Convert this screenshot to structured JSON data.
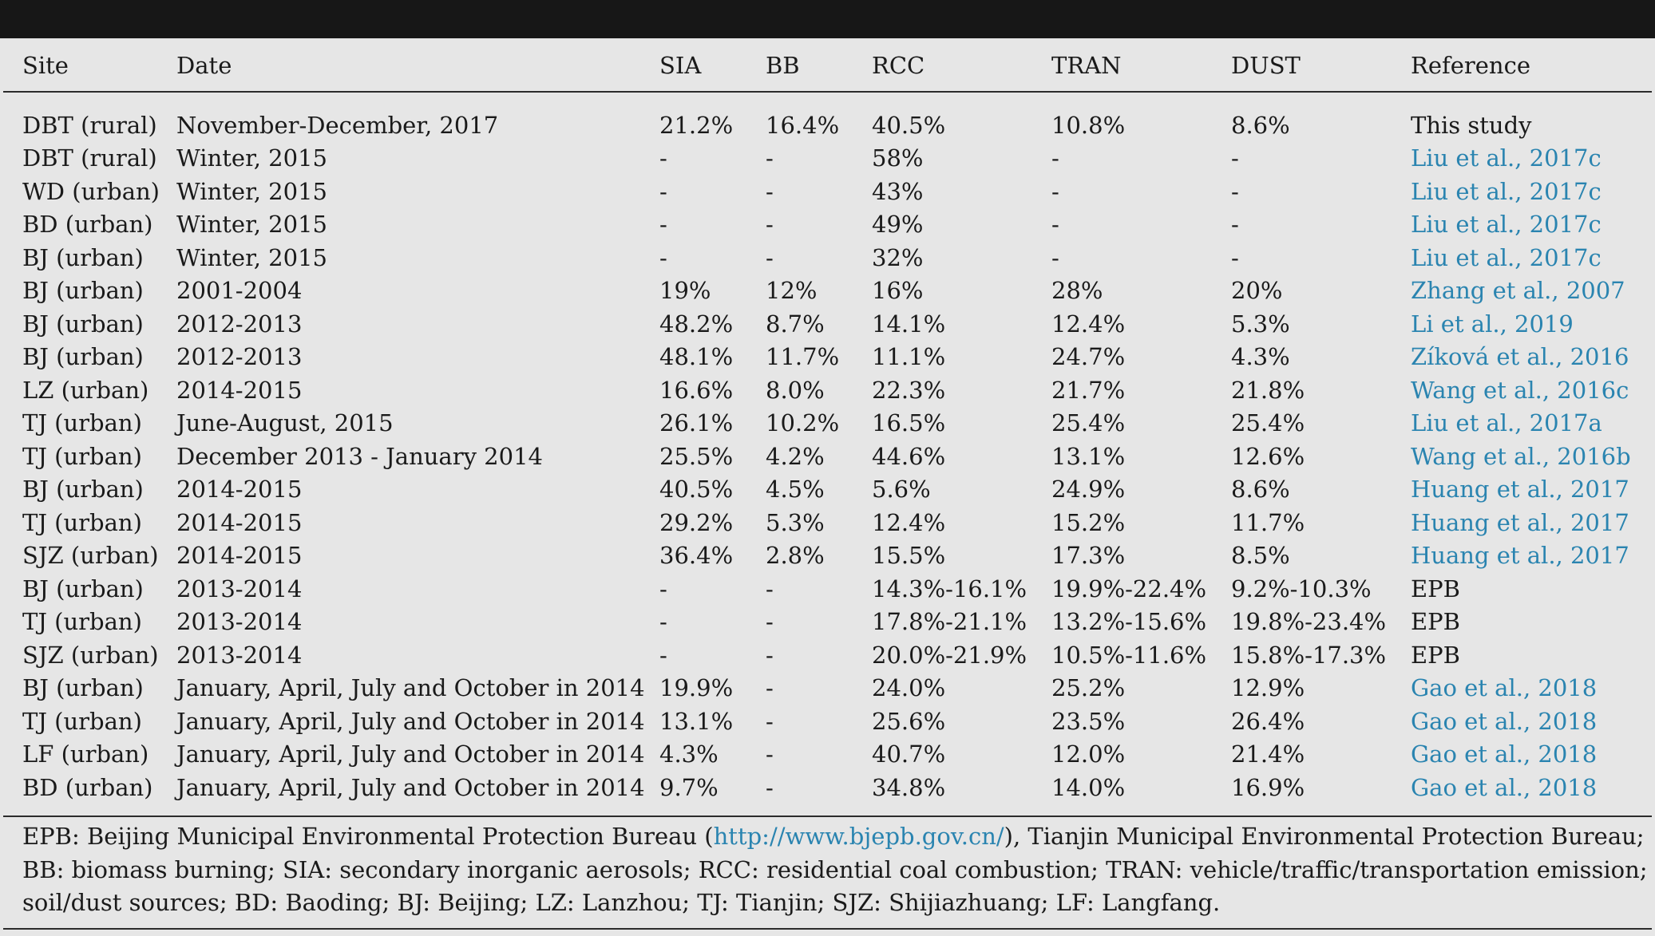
{
  "table": {
    "headers": [
      "Site",
      "Date",
      "SIA",
      "BB",
      "RCC",
      "TRAN",
      "DUST",
      "Reference"
    ],
    "rows": [
      {
        "site": "DBT (rural)",
        "date": "November-December, 2017",
        "sia": "21.2%",
        "bb": "16.4%",
        "rcc": "40.5%",
        "tran": "10.8%",
        "dust": "8.6%",
        "reference": "This study",
        "reference_is_link": false
      },
      {
        "site": "DBT (rural)",
        "date": "Winter, 2015",
        "sia": "-",
        "bb": "-",
        "rcc": "58%",
        "tran": "-",
        "dust": "-",
        "reference": "Liu et al., 2017c",
        "reference_is_link": true
      },
      {
        "site": "WD (urban)",
        "date": "Winter, 2015",
        "sia": "-",
        "bb": "-",
        "rcc": "43%",
        "tran": "-",
        "dust": "-",
        "reference": "Liu et al., 2017c",
        "reference_is_link": true
      },
      {
        "site": "BD (urban)",
        "date": "Winter, 2015",
        "sia": "-",
        "bb": "-",
        "rcc": "49%",
        "tran": "-",
        "dust": "-",
        "reference": "Liu et al., 2017c",
        "reference_is_link": true
      },
      {
        "site": "BJ (urban)",
        "date": "Winter, 2015",
        "sia": "-",
        "bb": "-",
        "rcc": "32%",
        "tran": "-",
        "dust": "-",
        "reference": "Liu et al., 2017c",
        "reference_is_link": true
      },
      {
        "site": "BJ (urban)",
        "date": "2001-2004",
        "sia": "19%",
        "bb": "12%",
        "rcc": "16%",
        "tran": "28%",
        "dust": "20%",
        "reference": "Zhang et al., 2007",
        "reference_is_link": true
      },
      {
        "site": "BJ (urban)",
        "date": "2012-2013",
        "sia": "48.2%",
        "bb": "8.7%",
        "rcc": "14.1%",
        "tran": "12.4%",
        "dust": "5.3%",
        "reference": "Li et al., 2019",
        "reference_is_link": true
      },
      {
        "site": "BJ (urban)",
        "date": "2012-2013",
        "sia": "48.1%",
        "bb": "11.7%",
        "rcc": "11.1%",
        "tran": "24.7%",
        "dust": "4.3%",
        "reference": "Zíková et al., 2016",
        "reference_is_link": true
      },
      {
        "site": "LZ (urban)",
        "date": "2014-2015",
        "sia": "16.6%",
        "bb": "8.0%",
        "rcc": "22.3%",
        "tran": "21.7%",
        "dust": "21.8%",
        "reference": "Wang et al., 2016c",
        "reference_is_link": true
      },
      {
        "site": "TJ (urban)",
        "date": "June-August, 2015",
        "sia": "26.1%",
        "bb": "10.2%",
        "rcc": "16.5%",
        "tran": "25.4%",
        "dust": "25.4%",
        "reference": "Liu et al., 2017a",
        "reference_is_link": true
      },
      {
        "site": "TJ (urban)",
        "date": "December 2013 - January 2014",
        "sia": "25.5%",
        "bb": "4.2%",
        "rcc": "44.6%",
        "tran": "13.1%",
        "dust": "12.6%",
        "reference": "Wang et al., 2016b",
        "reference_is_link": true
      },
      {
        "site": "BJ (urban)",
        "date": "2014-2015",
        "sia": "40.5%",
        "bb": "4.5%",
        "rcc": "5.6%",
        "tran": "24.9%",
        "dust": "8.6%",
        "reference": "Huang et al., 2017",
        "reference_is_link": true
      },
      {
        "site": "TJ (urban)",
        "date": "2014-2015",
        "sia": "29.2%",
        "bb": "5.3%",
        "rcc": "12.4%",
        "tran": "15.2%",
        "dust": "11.7%",
        "reference": "Huang et al., 2017",
        "reference_is_link": true
      },
      {
        "site": "SJZ (urban)",
        "date": "2014-2015",
        "sia": "36.4%",
        "bb": "2.8%",
        "rcc": "15.5%",
        "tran": "17.3%",
        "dust": "8.5%",
        "reference": "Huang et al., 2017",
        "reference_is_link": true
      },
      {
        "site": "BJ (urban)",
        "date": "2013-2014",
        "sia": "-",
        "bb": "-",
        "rcc": "14.3%-16.1%",
        "tran": "19.9%-22.4%",
        "dust": "9.2%-10.3%",
        "reference": "EPB",
        "reference_is_link": false
      },
      {
        "site": "TJ (urban)",
        "date": "2013-2014",
        "sia": "-",
        "bb": "-",
        "rcc": "17.8%-21.1%",
        "tran": "13.2%-15.6%",
        "dust": "19.8%-23.4%",
        "reference": "EPB",
        "reference_is_link": false
      },
      {
        "site": "SJZ (urban)",
        "date": "2013-2014",
        "sia": "-",
        "bb": "-",
        "rcc": "20.0%-21.9%",
        "tran": "10.5%-11.6%",
        "dust": "15.8%-17.3%",
        "reference": "EPB",
        "reference_is_link": false
      },
      {
        "site": "BJ (urban)",
        "date": "January, April, July and October in 2014",
        "sia": "19.9%",
        "bb": "-",
        "rcc": "24.0%",
        "tran": "25.2%",
        "dust": "12.9%",
        "reference": "Gao et al., 2018",
        "reference_is_link": true
      },
      {
        "site": "TJ (urban)",
        "date": "January, April, July and October in 2014",
        "sia": "13.1%",
        "bb": "-",
        "rcc": "25.6%",
        "tran": "23.5%",
        "dust": "26.4%",
        "reference": "Gao et al., 2018",
        "reference_is_link": true
      },
      {
        "site": "LF (urban)",
        "date": "January, April, July and October in 2014",
        "sia": "4.3%",
        "bb": "-",
        "rcc": "40.7%",
        "tran": "12.0%",
        "dust": "21.4%",
        "reference": "Gao et al., 2018",
        "reference_is_link": true
      },
      {
        "site": "BD (urban)",
        "date": "January, April, July and October in 2014",
        "sia": "9.7%",
        "bb": "-",
        "rcc": "34.8%",
        "tran": "14.0%",
        "dust": "16.9%",
        "reference": "Gao et al., 2018",
        "reference_is_link": true
      }
    ]
  },
  "footnote": {
    "line1_prefix": "EPB: Beijing Municipal Environmental Protection Bureau (",
    "url": "http://www.bjepb.gov.cn/",
    "line1_suffix": "), Tianjin Municipal Environmental Protection Bureau;",
    "line2": "BB: biomass burning; SIA: secondary inorganic aerosols; RCC: residential coal combustion; TRAN: vehicle/traffic/transportation emission; DUST:",
    "line3": "soil/dust sources; BD: Baoding; BJ: Beijing; LZ: Lanzhou; TJ: Tianjin; SJZ: Shijiazhuang; LF: Langfang."
  },
  "colors": {
    "background": "#e6e6e6",
    "header_bar": "#171717",
    "link": "#2a84b0",
    "text": "#1a1a1a"
  }
}
